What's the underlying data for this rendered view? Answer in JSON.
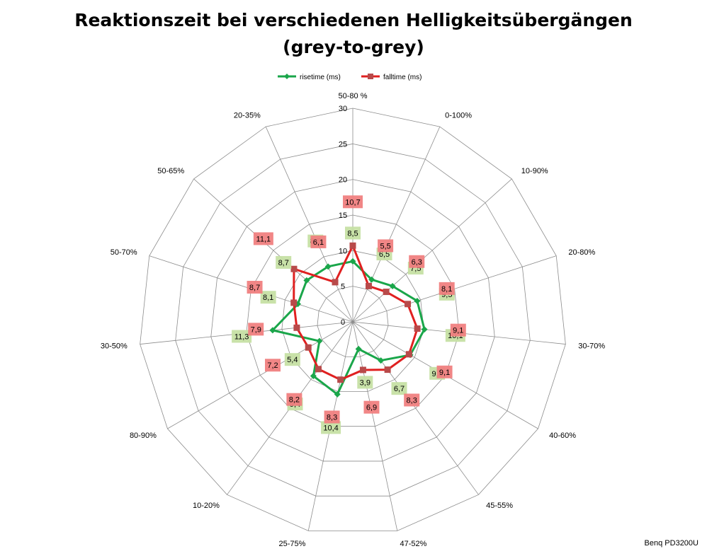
{
  "chart_data": {
    "type": "radar",
    "title_line1": "Reaktionszeit bei verschiedenen Helligkeitsübergängen",
    "title_line2": "(grey-to-grey)",
    "categories": [
      "50-80 %",
      "0-100%",
      "10-90%",
      "20-80%",
      "30-70%",
      "40-60%",
      "45-55%",
      "47-52%",
      "25-75%",
      "10-20%",
      "80-90%",
      "30-50%",
      "50-70%",
      "50-65%",
      "20-35%"
    ],
    "rlim": [
      0,
      30
    ],
    "ticks": [
      0,
      5,
      10,
      15,
      20,
      25,
      30
    ],
    "tick_labels": [
      "0",
      "5",
      "10",
      "15",
      "20",
      "25",
      "30"
    ],
    "grid": true,
    "legend_position": "top",
    "series": [
      {
        "name": "risetime (ms)",
        "color": "#1aa64a",
        "label_bg": "#c6e0a4",
        "marker": "diamond",
        "values": [
          8.5,
          6.5,
          7.5,
          9.5,
          10.1,
          9.3,
          6.7,
          3.9,
          10.4,
          9.4,
          5.4,
          11.3,
          8.1,
          8.7,
          8.5
        ],
        "labels": [
          "8,5",
          "6,5",
          "7,5",
          "9,5",
          "10,1",
          "9,3",
          "6,7",
          "3,9",
          "10,4",
          "9,4",
          "5,4",
          "11,3",
          "8,1",
          "8,7",
          "8,5"
        ]
      },
      {
        "name": "falltime (ms)",
        "color": "#e02020",
        "label_bg": "#f08080",
        "marker": "square",
        "values": [
          10.7,
          5.5,
          6.3,
          8.1,
          9.1,
          9.1,
          8.3,
          6.9,
          8.3,
          8.2,
          7.2,
          7.9,
          8.7,
          11.1,
          6.1
        ],
        "labels": [
          "10,7",
          "5,5",
          "6,3",
          "8,1",
          "9,1",
          "9,1",
          "8,3",
          "6,9",
          "8,3",
          "8,2",
          "7,2",
          "7,9",
          "8,7",
          "11,1",
          "6,1"
        ]
      }
    ]
  },
  "source_note": "Benq PD3200U"
}
